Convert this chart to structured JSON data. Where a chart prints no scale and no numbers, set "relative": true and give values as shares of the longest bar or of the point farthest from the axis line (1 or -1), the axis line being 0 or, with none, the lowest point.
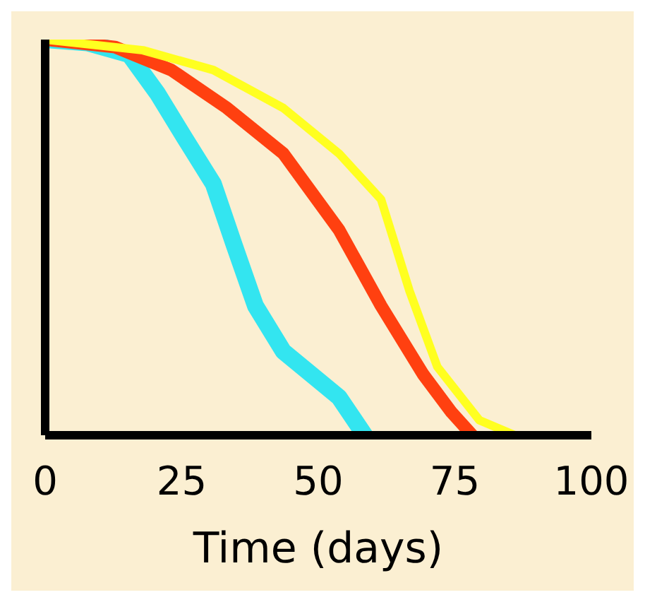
{
  "chart_data": {
    "type": "line",
    "relative": true,
    "xlabel": "Time (days)",
    "xlim": [
      0,
      100
    ],
    "xticks": [
      0,
      25,
      50,
      75,
      100
    ],
    "grid": false,
    "legend": false,
    "marker": "none",
    "line_style": "solid",
    "series": [
      {
        "color": "#33e5f0",
        "x": [
          0,
          7.7,
          15.4,
          20.5,
          25.6,
          30.8,
          34.6,
          38.5,
          43.6,
          48.7,
          53.8,
          58.5
        ],
        "values": [
          1,
          0.992,
          0.962,
          0.865,
          0.75,
          0.635,
          0.481,
          0.327,
          0.212,
          0.154,
          0.096,
          0
        ]
      },
      {
        "color": "#ff4010",
        "x": [
          0,
          12.8,
          23.1,
          33.3,
          43.6,
          53.8,
          61.5,
          69.2,
          74.4,
          78.2
        ],
        "values": [
          1,
          0.981,
          0.923,
          0.827,
          0.712,
          0.519,
          0.327,
          0.154,
          0.058,
          0
        ]
      },
      {
        "color": "#ffff20",
        "x": [
          0,
          17.9,
          30.8,
          43.6,
          53.8,
          61.5,
          66.7,
          71.8,
          79.5,
          86
        ],
        "values": [
          1,
          0.973,
          0.923,
          0.827,
          0.712,
          0.596,
          0.365,
          0.173,
          0.038,
          0
        ]
      }
    ]
  }
}
